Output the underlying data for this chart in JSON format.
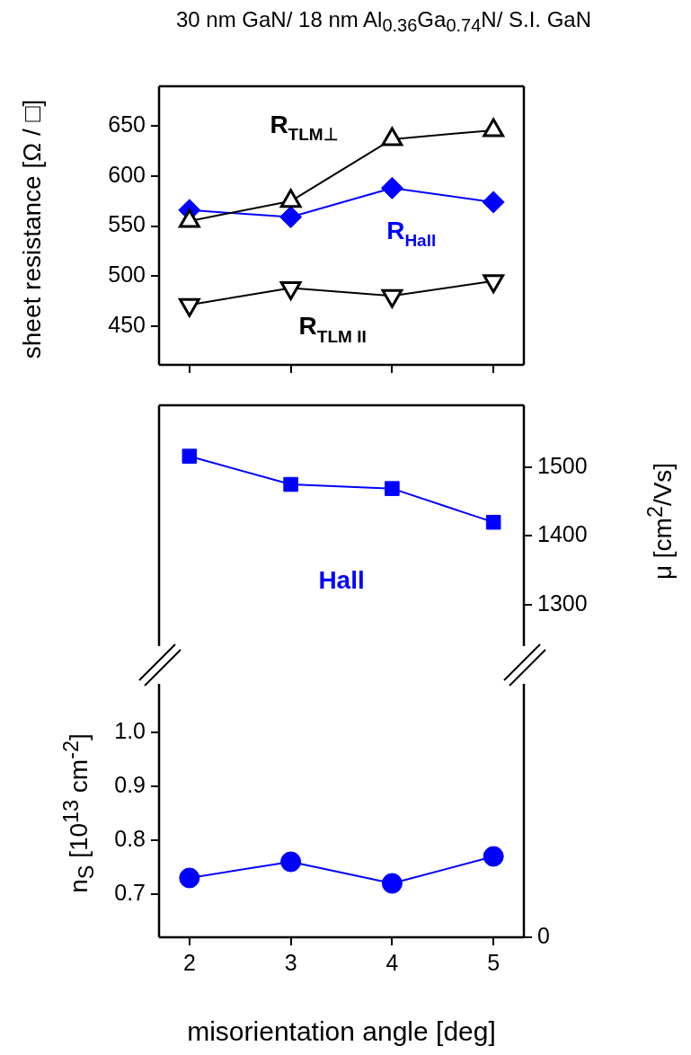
{
  "chart_data": [
    {
      "type": "line",
      "title": "30 nm GaN/ 18 nm Al$_{0.36}$Ga$_{0.74}$N/ S.I. GaN",
      "ylabel": "sheet resistance  [Ω / □]",
      "x": [
        2,
        3,
        4,
        5
      ],
      "xlim": [
        1.7,
        5.3
      ],
      "xticks": [
        2,
        3,
        4,
        5
      ],
      "ylim": [
        411,
        690
      ],
      "yticks": [
        450,
        500,
        550,
        600,
        650
      ],
      "tick_labels": "y",
      "legend": false,
      "series": [
        {
          "name": "R$_{TLM⊥}$",
          "color": "#000000",
          "values": [
            555,
            575,
            637,
            646
          ],
          "marker": "triangle"
        },
        {
          "name": "R$_{Hall}$",
          "color": "#0000ff",
          "values": [
            566,
            559,
            588,
            574
          ],
          "marker": "diamond"
        },
        {
          "name": "R$_{TLM II}$",
          "color": "#000000",
          "values": [
            471,
            488,
            480,
            495
          ],
          "marker": "triangle_down"
        }
      ]
    },
    {
      "type": "line",
      "y2label": "μ  [cm$^{2}$/Vs]",
      "x": [
        2,
        3,
        4,
        5
      ],
      "xlim": [
        1.7,
        5.3
      ],
      "y2lim": [
        1240,
        1590
      ],
      "y2ticks": [
        1300,
        1400,
        1500
      ],
      "legend": false,
      "series": [
        {
          "name": "Hall",
          "color": "#0000ff",
          "values": [
            1516,
            1475,
            1469,
            1420
          ],
          "marker": "square",
          "axis": "y2"
        }
      ]
    },
    {
      "type": "line",
      "xlabel": "misorientation angle  [deg]",
      "ylabel": "n$_{S}$  [10$^{13}$ cm$^{-2}$]",
      "x": [
        2,
        3,
        4,
        5
      ],
      "xlim": [
        1.7,
        5.3
      ],
      "xticks": [
        2,
        3,
        4,
        5
      ],
      "ylim": [
        0.62,
        1.09
      ],
      "yticks": [
        0.7,
        0.8,
        0.9,
        {
          "value": 1,
          "label": "1.0"
        }
      ],
      "annotations": [
        "0"
      ],
      "legend": false,
      "series": [
        {
          "color": "#0000ff",
          "values": [
            0.73,
            0.76,
            0.72,
            0.77
          ],
          "marker": "circle"
        }
      ]
    }
  ]
}
